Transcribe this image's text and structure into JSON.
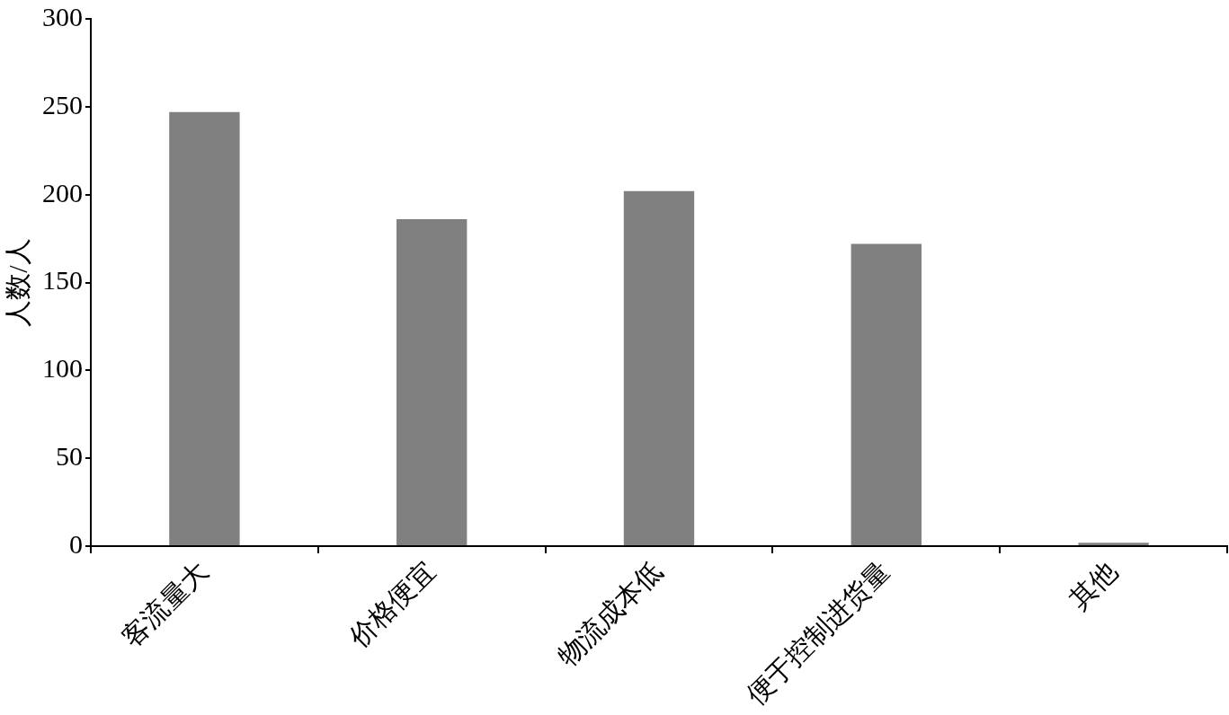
{
  "chart_data": {
    "type": "bar",
    "ylabel": "人数/人",
    "categories": [
      "客流量大",
      "价格便宜",
      "物流成本低",
      "便于控制进货量",
      "其他"
    ],
    "values": [
      247,
      186,
      202,
      172,
      2
    ],
    "color": "#808080",
    "ylim": [
      0,
      300
    ],
    "yticks": [
      0,
      50,
      100,
      150,
      200,
      250,
      300
    ],
    "grid": false,
    "legend": false
  }
}
